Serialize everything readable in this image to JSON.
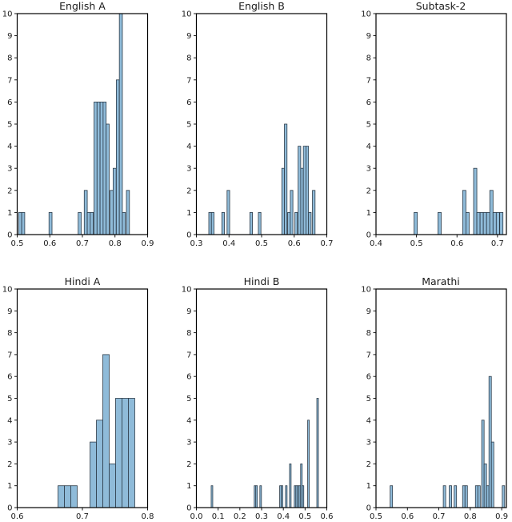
{
  "figure": {
    "background": "#ffffff",
    "bar_fill": "#8fbbd9",
    "bar_edge": "#2b3a48",
    "axis_color": "#000000",
    "text_color": "#1a1a1a",
    "rows": 2,
    "cols": 3
  },
  "chart_data": [
    {
      "type": "bar",
      "subtype": "histogram",
      "title": "English A",
      "xlim": [
        0.5,
        0.9
      ],
      "ylim": [
        0,
        10
      ],
      "xticks": [
        0.5,
        0.6,
        0.7,
        0.8,
        0.9
      ],
      "xtick_labels": [
        "0.5",
        "0.6",
        "0.7",
        "0.8",
        "0.9"
      ],
      "yticks": [
        0,
        1,
        2,
        3,
        4,
        5,
        6,
        7,
        8,
        9,
        10
      ],
      "bin_width": 0.0093,
      "grid": false,
      "legend": false,
      "bars": [
        [
          0.5045,
          1
        ],
        [
          0.5138,
          1
        ],
        [
          0.5975,
          1
        ],
        [
          0.687,
          1
        ],
        [
          0.7056,
          2
        ],
        [
          0.7149,
          1
        ],
        [
          0.7242,
          1
        ],
        [
          0.7356,
          6
        ],
        [
          0.7449,
          6
        ],
        [
          0.7542,
          6
        ],
        [
          0.7635,
          6
        ],
        [
          0.7728,
          5
        ],
        [
          0.7849,
          2
        ],
        [
          0.7942,
          3
        ],
        [
          0.804,
          7
        ],
        [
          0.8133,
          10
        ],
        [
          0.8226,
          1
        ],
        [
          0.835,
          2
        ]
      ]
    },
    {
      "type": "bar",
      "subtype": "histogram",
      "title": "English B",
      "xlim": [
        0.3,
        0.7
      ],
      "ylim": [
        0,
        10
      ],
      "xticks": [
        0.3,
        0.4,
        0.5,
        0.6,
        0.7
      ],
      "xtick_labels": [
        "0.3",
        "0.4",
        "0.5",
        "0.6",
        "0.7"
      ],
      "yticks": [
        0,
        1,
        2,
        3,
        4,
        5,
        6,
        7,
        8,
        9,
        10
      ],
      "bin_width": 0.008,
      "grid": false,
      "legend": false,
      "bars": [
        [
          0.338,
          1
        ],
        [
          0.346,
          1
        ],
        [
          0.378,
          1
        ],
        [
          0.394,
          2
        ],
        [
          0.464,
          1
        ],
        [
          0.49,
          1
        ],
        [
          0.562,
          3
        ],
        [
          0.57,
          5
        ],
        [
          0.58,
          1
        ],
        [
          0.588,
          2
        ],
        [
          0.602,
          1
        ],
        [
          0.612,
          4
        ],
        [
          0.62,
          3
        ],
        [
          0.628,
          4
        ],
        [
          0.636,
          4
        ],
        [
          0.644,
          1
        ],
        [
          0.656,
          2
        ]
      ]
    },
    {
      "type": "bar",
      "subtype": "histogram",
      "title": "Subtask-2",
      "xlim": [
        0.4,
        0.722
      ],
      "ylim": [
        0,
        10
      ],
      "xticks": [
        0.4,
        0.5,
        0.6,
        0.7
      ],
      "xtick_labels": [
        "0.4",
        "0.5",
        "0.6",
        "0.7"
      ],
      "yticks": [
        0,
        1,
        2,
        3,
        4,
        5,
        6,
        7,
        8,
        9,
        10
      ],
      "bin_width": 0.008,
      "grid": false,
      "legend": false,
      "bars": [
        [
          0.494,
          1
        ],
        [
          0.553,
          1
        ],
        [
          0.614,
          2
        ],
        [
          0.622,
          1
        ],
        [
          0.641,
          3
        ],
        [
          0.649,
          1
        ],
        [
          0.657,
          1
        ],
        [
          0.665,
          1
        ],
        [
          0.673,
          1
        ],
        [
          0.681,
          2
        ],
        [
          0.689,
          1
        ],
        [
          0.697,
          1
        ],
        [
          0.7055,
          1
        ]
      ]
    },
    {
      "type": "bar",
      "subtype": "histogram",
      "title": "Hindi A",
      "xlim": [
        0.6,
        0.8
      ],
      "ylim": [
        0,
        10
      ],
      "xticks": [
        0.6,
        0.7,
        0.8
      ],
      "xtick_labels": [
        "0.6",
        "0.7",
        "0.8"
      ],
      "yticks": [
        0,
        1,
        2,
        3,
        4,
        5,
        6,
        7,
        8,
        9,
        10
      ],
      "bin_width": 0.0098,
      "grid": false,
      "legend": false,
      "bars": [
        [
          0.6626,
          1
        ],
        [
          0.6724,
          1
        ],
        [
          0.6822,
          1
        ],
        [
          0.7117,
          3
        ],
        [
          0.7215,
          4
        ],
        [
          0.7313,
          7
        ],
        [
          0.7411,
          2
        ],
        [
          0.7509,
          5
        ],
        [
          0.7607,
          5
        ],
        [
          0.7705,
          5
        ]
      ]
    },
    {
      "type": "bar",
      "subtype": "histogram",
      "title": "Hindi B",
      "xlim": [
        0.0,
        0.6
      ],
      "ylim": [
        0,
        10
      ],
      "xticks": [
        0.0,
        0.1,
        0.2,
        0.3,
        0.4,
        0.5,
        0.6
      ],
      "xtick_labels": [
        "0.0",
        "0.1",
        "0.2",
        "0.3",
        "0.4",
        "0.5",
        "0.6"
      ],
      "yticks": [
        0,
        1,
        2,
        3,
        4,
        5,
        6,
        7,
        8,
        9,
        10
      ],
      "bin_width": 0.0073,
      "grid": false,
      "legend": false,
      "bars": [
        [
          0.068,
          1
        ],
        [
          0.266,
          1
        ],
        [
          0.2733,
          1
        ],
        [
          0.292,
          1
        ],
        [
          0.383,
          1
        ],
        [
          0.3903,
          1
        ],
        [
          0.41,
          1
        ],
        [
          0.4285,
          2
        ],
        [
          0.4503,
          1
        ],
        [
          0.4576,
          1
        ],
        [
          0.4649,
          1
        ],
        [
          0.4722,
          1
        ],
        [
          0.4795,
          2
        ],
        [
          0.4868,
          1
        ],
        [
          0.512,
          4
        ],
        [
          0.5541,
          5
        ]
      ]
    },
    {
      "type": "bar",
      "subtype": "histogram",
      "title": "Marathi",
      "xlim": [
        0.5,
        0.915
      ],
      "ylim": [
        0,
        10
      ],
      "xticks": [
        0.5,
        0.6,
        0.7,
        0.8,
        0.9
      ],
      "xtick_labels": [
        "0.5",
        "0.6",
        "0.7",
        "0.8",
        "0.9"
      ],
      "yticks": [
        0,
        1,
        2,
        3,
        4,
        5,
        6,
        7,
        8,
        9,
        10
      ],
      "bin_width": 0.0077,
      "grid": false,
      "legend": false,
      "bars": [
        [
          0.545,
          1
        ],
        [
          0.7141,
          1
        ],
        [
          0.733,
          1
        ],
        [
          0.7487,
          1
        ],
        [
          0.7756,
          1
        ],
        [
          0.7833,
          1
        ],
        [
          0.8164,
          1
        ],
        [
          0.8241,
          1
        ],
        [
          0.8364,
          4
        ],
        [
          0.8441,
          2
        ],
        [
          0.8518,
          1
        ],
        [
          0.8595,
          6
        ],
        [
          0.8672,
          3
        ],
        [
          0.9018,
          1
        ]
      ]
    }
  ]
}
